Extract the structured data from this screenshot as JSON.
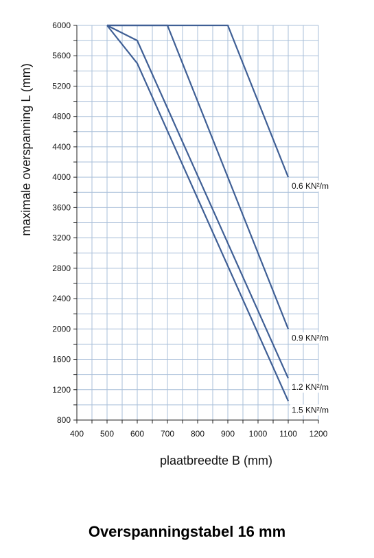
{
  "chart_data": {
    "type": "line",
    "title": "Overspanningstabel 16 mm",
    "xlabel": "plaatbreedte B  (mm)",
    "ylabel": "maximale overspanning L (mm)",
    "xlim": [
      400,
      1200
    ],
    "ylim": [
      800,
      6000
    ],
    "x_ticks": [
      400,
      500,
      600,
      700,
      800,
      900,
      1000,
      1100,
      1200
    ],
    "y_ticks": [
      800,
      1200,
      1600,
      2000,
      2400,
      2800,
      3200,
      3600,
      4000,
      4400,
      4800,
      5200,
      5600,
      6000
    ],
    "x_minor_step": 50,
    "y_minor_step": 200,
    "grid": true,
    "colors": {
      "series": "#3f5f95",
      "grid": "#a9bfd9",
      "axis": "#222222"
    },
    "series": [
      {
        "name": "0.6 KN²/m",
        "x": [
          500,
          900,
          1100
        ],
        "y": [
          6000,
          6000,
          4000
        ]
      },
      {
        "name": "0.9 KN²/m",
        "x": [
          500,
          700,
          1100
        ],
        "y": [
          6000,
          6000,
          2000
        ]
      },
      {
        "name": "1.2 KN²/m",
        "x": [
          500,
          600,
          1100
        ],
        "y": [
          6000,
          5800,
          1350
        ]
      },
      {
        "name": "1.5 KN²/m",
        "x": [
          500,
          600,
          1100
        ],
        "y": [
          6000,
          5500,
          1050
        ]
      }
    ]
  }
}
